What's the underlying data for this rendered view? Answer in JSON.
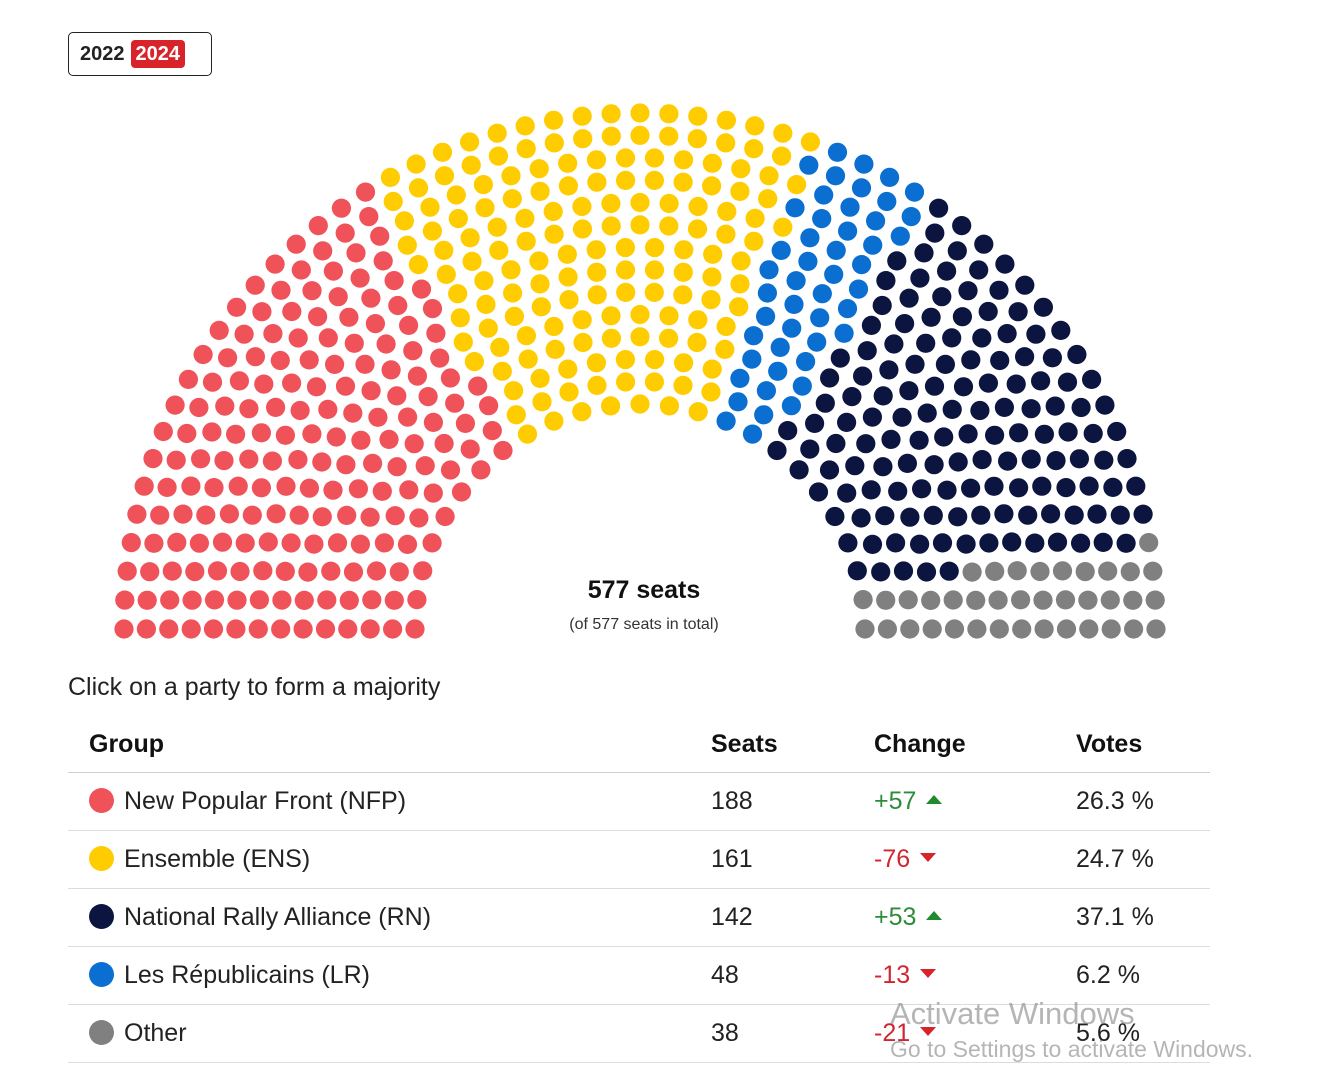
{
  "year_toggle": {
    "options": [
      "2022",
      "2024"
    ],
    "selected": "2024"
  },
  "summary": {
    "seats_label": "577 seats",
    "sub_label": "(of 577 seats in total)"
  },
  "instruction": "Click on a party to form a majority",
  "table": {
    "headers": {
      "group": "Group",
      "seats": "Seats",
      "change": "Change",
      "votes": "Votes"
    },
    "rows": [
      {
        "name": "New Popular Front (NFP)",
        "seats": "188",
        "change": "+57",
        "direction": "up",
        "votes": "26.3 %",
        "color": "#f0525a"
      },
      {
        "name": "Ensemble (ENS)",
        "seats": "161",
        "change": "-76",
        "direction": "down",
        "votes": "24.7 %",
        "color": "#ffcc00"
      },
      {
        "name": "National Rally Alliance (RN)",
        "seats": "142",
        "change": "+53",
        "direction": "up",
        "votes": "37.1 %",
        "color": "#0b1540"
      },
      {
        "name": "Les Républicains (LR)",
        "seats": "48",
        "change": "-13",
        "direction": "down",
        "votes": "6.2 %",
        "color": "#0a6fd1"
      },
      {
        "name": "Other",
        "seats": "38",
        "change": "-21",
        "direction": "down",
        "votes": "5.6 %",
        "color": "#808080"
      }
    ]
  },
  "chart_data": {
    "type": "hemicycle",
    "total_seats": 577,
    "series": [
      {
        "name": "New Popular Front (NFP)",
        "value": 188,
        "color": "#f0525a"
      },
      {
        "name": "Ensemble (ENS)",
        "value": 161,
        "color": "#ffcc00"
      },
      {
        "name": "Les Républicains (LR)",
        "value": 48,
        "color": "#0a6fd1"
      },
      {
        "name": "National Rally Alliance (RN)",
        "value": 142,
        "color": "#0b1540"
      },
      {
        "name": "Other",
        "value": 38,
        "color": "#808080"
      }
    ]
  },
  "watermark": {
    "line1": "Activate Windows",
    "line2": "Go to Settings to activate Windows."
  }
}
